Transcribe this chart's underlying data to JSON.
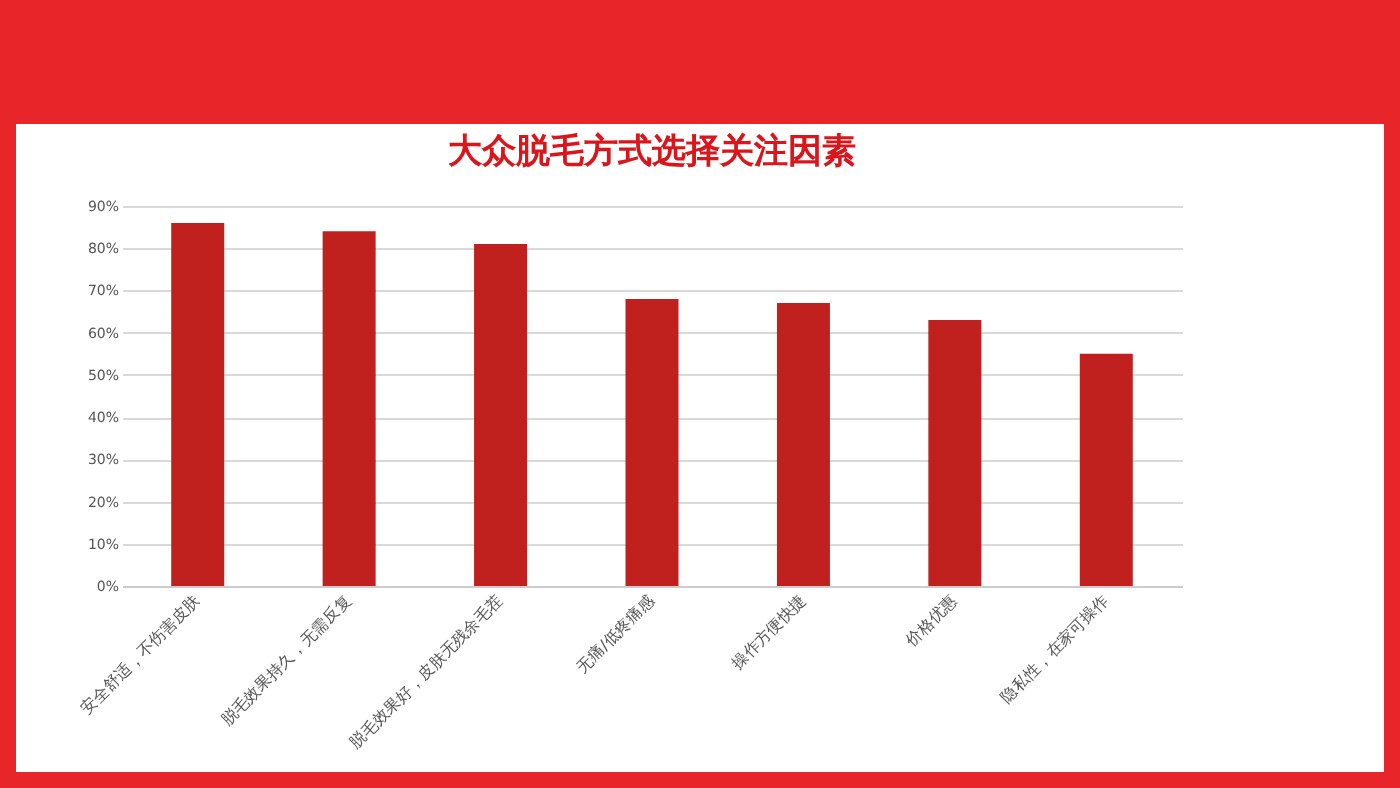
{
  "chart_data": {
    "type": "bar",
    "title": "大众脱毛方式选择关注因素",
    "categories": [
      "安全舒适，不伤害皮肤",
      "脱毛效果持久，无需反复",
      "脱毛效果好，皮肤无残余毛茬",
      "无痛/低疼痛感",
      "操作方便快捷",
      "价格优惠",
      "隐私性，在家可操作"
    ],
    "values": [
      86,
      84,
      81,
      68,
      67,
      63,
      55
    ],
    "color": "#c0201e",
    "ylim": [
      0,
      90
    ],
    "yticks": [
      {
        "value": 0,
        "label": "0%"
      },
      {
        "value": 10,
        "label": "10%"
      },
      {
        "value": 20,
        "label": "20%"
      },
      {
        "value": 30,
        "label": "30%"
      },
      {
        "value": 40,
        "label": "40%"
      },
      {
        "value": 50,
        "label": "50%"
      },
      {
        "value": 60,
        "label": "60%"
      },
      {
        "value": 70,
        "label": "70%"
      },
      {
        "value": 80,
        "label": "80%"
      },
      {
        "value": 90,
        "label": "90%"
      }
    ],
    "grid": "y"
  }
}
